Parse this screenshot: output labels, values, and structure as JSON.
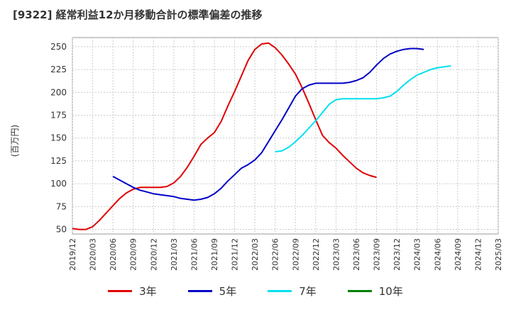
{
  "header": {
    "title": "[9322]  経常利益12か月移動合計の標準偏差の推移",
    "y_unit": "(百万円)"
  },
  "colors": {
    "grid": "#cccccc",
    "axis": "#999999",
    "background": "#ffffff"
  },
  "chart_data": {
    "type": "line",
    "title": "[9322]  経常利益12か月移動合計の標準偏差の推移",
    "ylabel": "(百万円)",
    "xlabel": "",
    "ylim": [
      45,
      260
    ],
    "yticks": [
      50,
      75,
      100,
      125,
      150,
      175,
      200,
      225,
      250
    ],
    "x_tick_labels": [
      "2019/12",
      "2020/03",
      "2020/06",
      "2020/09",
      "2020/12",
      "2021/03",
      "2021/06",
      "2021/09",
      "2021/12",
      "2022/03",
      "2022/06",
      "2022/09",
      "2022/12",
      "2023/03",
      "2023/06",
      "2023/09",
      "2023/12",
      "2024/03",
      "2024/06",
      "2024/09",
      "2024/12",
      "2025/03"
    ],
    "grid": true,
    "legend_position": "bottom",
    "series": [
      {
        "name": "3年",
        "color": "#e00000",
        "start_index": 0,
        "values": [
          51,
          50,
          50,
          53,
          60,
          68,
          76,
          84,
          90,
          94,
          96,
          96,
          96,
          96,
          97,
          101,
          108,
          118,
          130,
          143,
          150,
          156,
          168,
          185,
          201,
          218,
          235,
          247,
          253,
          254,
          249,
          241,
          231,
          220,
          205,
          188,
          170,
          153,
          145,
          139,
          131,
          124,
          117,
          112,
          109,
          107
        ]
      },
      {
        "name": "5年",
        "color": "#0000c8",
        "start_index": 6,
        "values": [
          108,
          104,
          100,
          96,
          93,
          91,
          89,
          88,
          87,
          86,
          84,
          83,
          82,
          83,
          85,
          89,
          95,
          103,
          110,
          117,
          121,
          126,
          134,
          146,
          158,
          170,
          183,
          196,
          204,
          208,
          210,
          210,
          210,
          210,
          210,
          211,
          213,
          216,
          222,
          230,
          237,
          242,
          245,
          247,
          248,
          248,
          247
        ]
      },
      {
        "name": "7年",
        "color": "#00e0f0",
        "start_index": 30,
        "values": [
          135,
          136,
          140,
          146,
          153,
          161,
          169,
          178,
          187,
          192,
          193,
          193,
          193,
          193,
          193,
          193,
          194,
          196,
          201,
          208,
          214,
          219,
          222,
          225,
          227,
          228,
          229
        ]
      },
      {
        "name": "10年",
        "color": "#008000",
        "start_index": 0,
        "values": []
      }
    ]
  }
}
